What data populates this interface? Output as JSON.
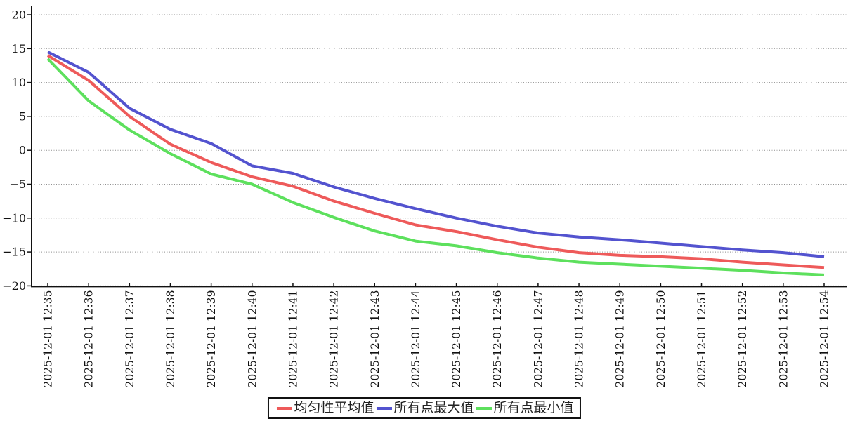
{
  "page": {
    "background": "#ffffff",
    "title": ""
  },
  "chart_data": {
    "type": "line",
    "title": "",
    "xlabel": "",
    "ylabel": "",
    "categories": [
      "2025-12-01 12:35",
      "2025-12-01 12:36",
      "2025-12-01 12:37",
      "2025-12-01 12:38",
      "2025-12-01 12:39",
      "2025-12-01 12:40",
      "2025-12-01 12:41",
      "2025-12-01 12:42",
      "2025-12-01 12:43",
      "2025-12-01 12:44",
      "2025-12-01 12:45",
      "2025-12-01 12:46",
      "2025-12-01 12:47",
      "2025-12-01 12:48",
      "2025-12-01 12:49",
      "2025-12-01 12:50",
      "2025-12-01 12:51",
      "2025-12-01 12:52",
      "2025-12-01 12:53",
      "2025-12-01 12:54"
    ],
    "series": [
      {
        "id": "avg",
        "name": "均匀性平均值",
        "color": "#ee5a5a",
        "values": [
          14.0,
          10.3,
          5.0,
          0.9,
          -1.8,
          -3.9,
          -5.3,
          -7.5,
          -9.3,
          -11.0,
          -12.0,
          -13.2,
          -14.3,
          -15.1,
          -15.5,
          -15.7,
          -16.0,
          -16.5,
          -16.9,
          -17.3
        ]
      },
      {
        "id": "max",
        "name": "所有点最大值",
        "color": "#5353cf",
        "values": [
          14.5,
          11.5,
          6.2,
          3.1,
          1.0,
          -2.3,
          -3.4,
          -5.4,
          -7.1,
          -8.6,
          -10.0,
          -11.2,
          -12.2,
          -12.8,
          -13.2,
          -13.7,
          -14.2,
          -14.7,
          -15.1,
          -15.7
        ]
      },
      {
        "id": "min",
        "name": "所有点最小值",
        "color": "#5de05d",
        "values": [
          13.5,
          7.3,
          3.0,
          -0.5,
          -3.5,
          -5.0,
          -7.7,
          -9.9,
          -11.9,
          -13.4,
          -14.1,
          -15.1,
          -15.9,
          -16.5,
          -16.8,
          -17.1,
          -17.4,
          -17.7,
          -18.1,
          -18.4
        ]
      }
    ],
    "ylim": [
      -20,
      20
    ],
    "yticks": [
      20,
      15,
      10,
      5,
      0,
      -5,
      -10,
      -15,
      -20
    ],
    "ytick_labels": [
      "20",
      "15",
      "10",
      "5",
      "0",
      "−5",
      "−10",
      "−15",
      "−20"
    ],
    "xtick_label_rotation_deg": 90,
    "grid": "horizontal dotted",
    "grid_color": "#8f8f8f",
    "axis_color": "#111111",
    "legend_position": "bottom-center",
    "legend_border_color": "#111111"
  }
}
